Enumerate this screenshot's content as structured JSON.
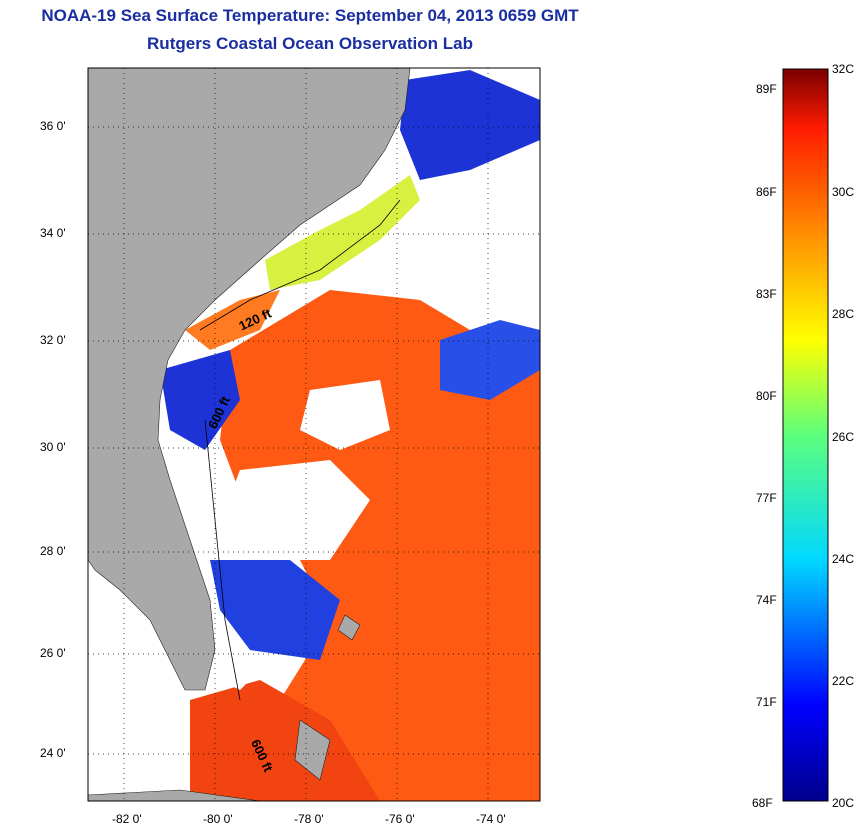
{
  "title": {
    "line1": "NOAA-19 Sea Surface Temperature:  September 04, 2013 0659 GMT",
    "line2": "Rutgers Coastal Ocean Observation Lab"
  },
  "map": {
    "lat_ticks": [
      "36 0'",
      "34 0'",
      "32 0'",
      "30 0'",
      "28 0'",
      "26 0'",
      "24 0'"
    ],
    "lon_ticks": [
      "-82 0'",
      "-80 0'",
      "-78 0'",
      "-76 0'",
      "-74 0'"
    ],
    "isobaths": [
      "120 ft",
      "600 ft",
      "600 ft"
    ],
    "colors": {
      "land": "#a9a9a9",
      "cloud": "#ffffff",
      "warm": "#ff5a14",
      "cool": "#1d33d6"
    }
  },
  "colorbar": {
    "fahrenheit": [
      "89F",
      "86F",
      "83F",
      "80F",
      "77F",
      "74F",
      "71F",
      "68F"
    ],
    "celsius": [
      "32C",
      "30C",
      "28C",
      "26C",
      "24C",
      "22C",
      "20C"
    ],
    "min_c": 20,
    "max_c": 32
  }
}
